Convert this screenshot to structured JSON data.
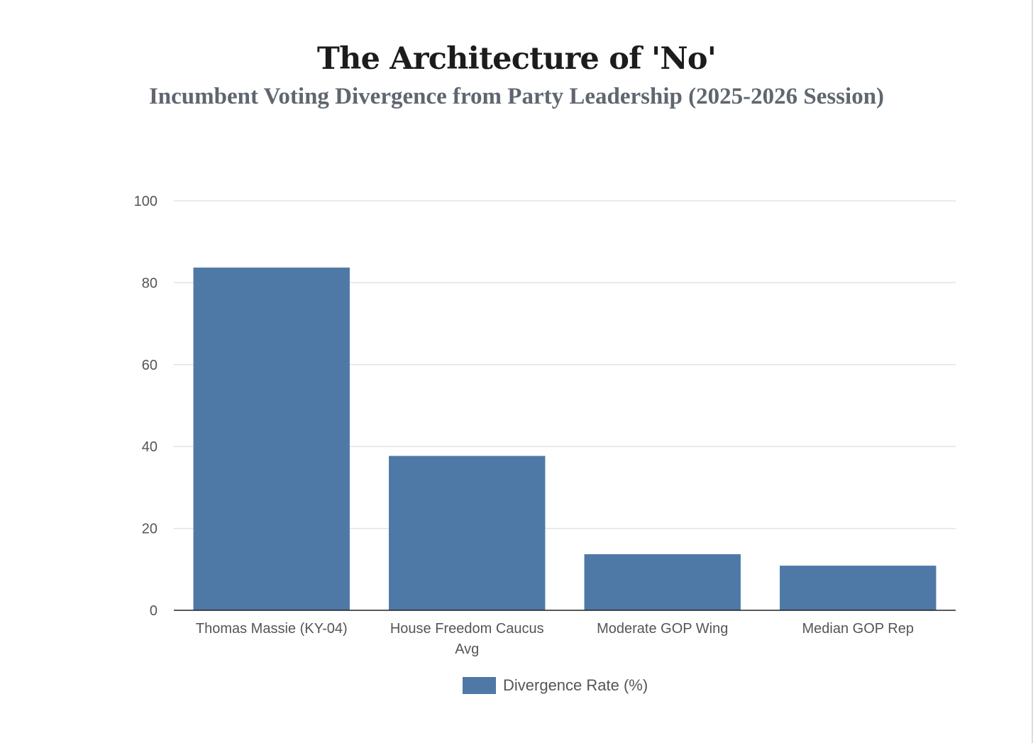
{
  "chart_data": {
    "type": "bar",
    "title": "The Architecture of 'No'",
    "subtitle": "Incumbent Voting Divergence from Party Leadership (2025-2026 Session)",
    "categories": [
      [
        "Thomas Massie (KY-04)"
      ],
      [
        "House Freedom Caucus",
        "Avg"
      ],
      [
        "Moderate GOP Wing"
      ],
      [
        "Median GOP Rep"
      ]
    ],
    "series": [
      {
        "name": "Divergence Rate (%)",
        "values": [
          83.7,
          37.7,
          13.7,
          10.9
        ],
        "color": "#4e79a7"
      }
    ],
    "ylim": [
      0,
      100
    ],
    "yticks": [
      0,
      20,
      40,
      60,
      80,
      100
    ],
    "grid": true,
    "legend": "bottom-center",
    "xlabel": "",
    "ylabel": ""
  }
}
